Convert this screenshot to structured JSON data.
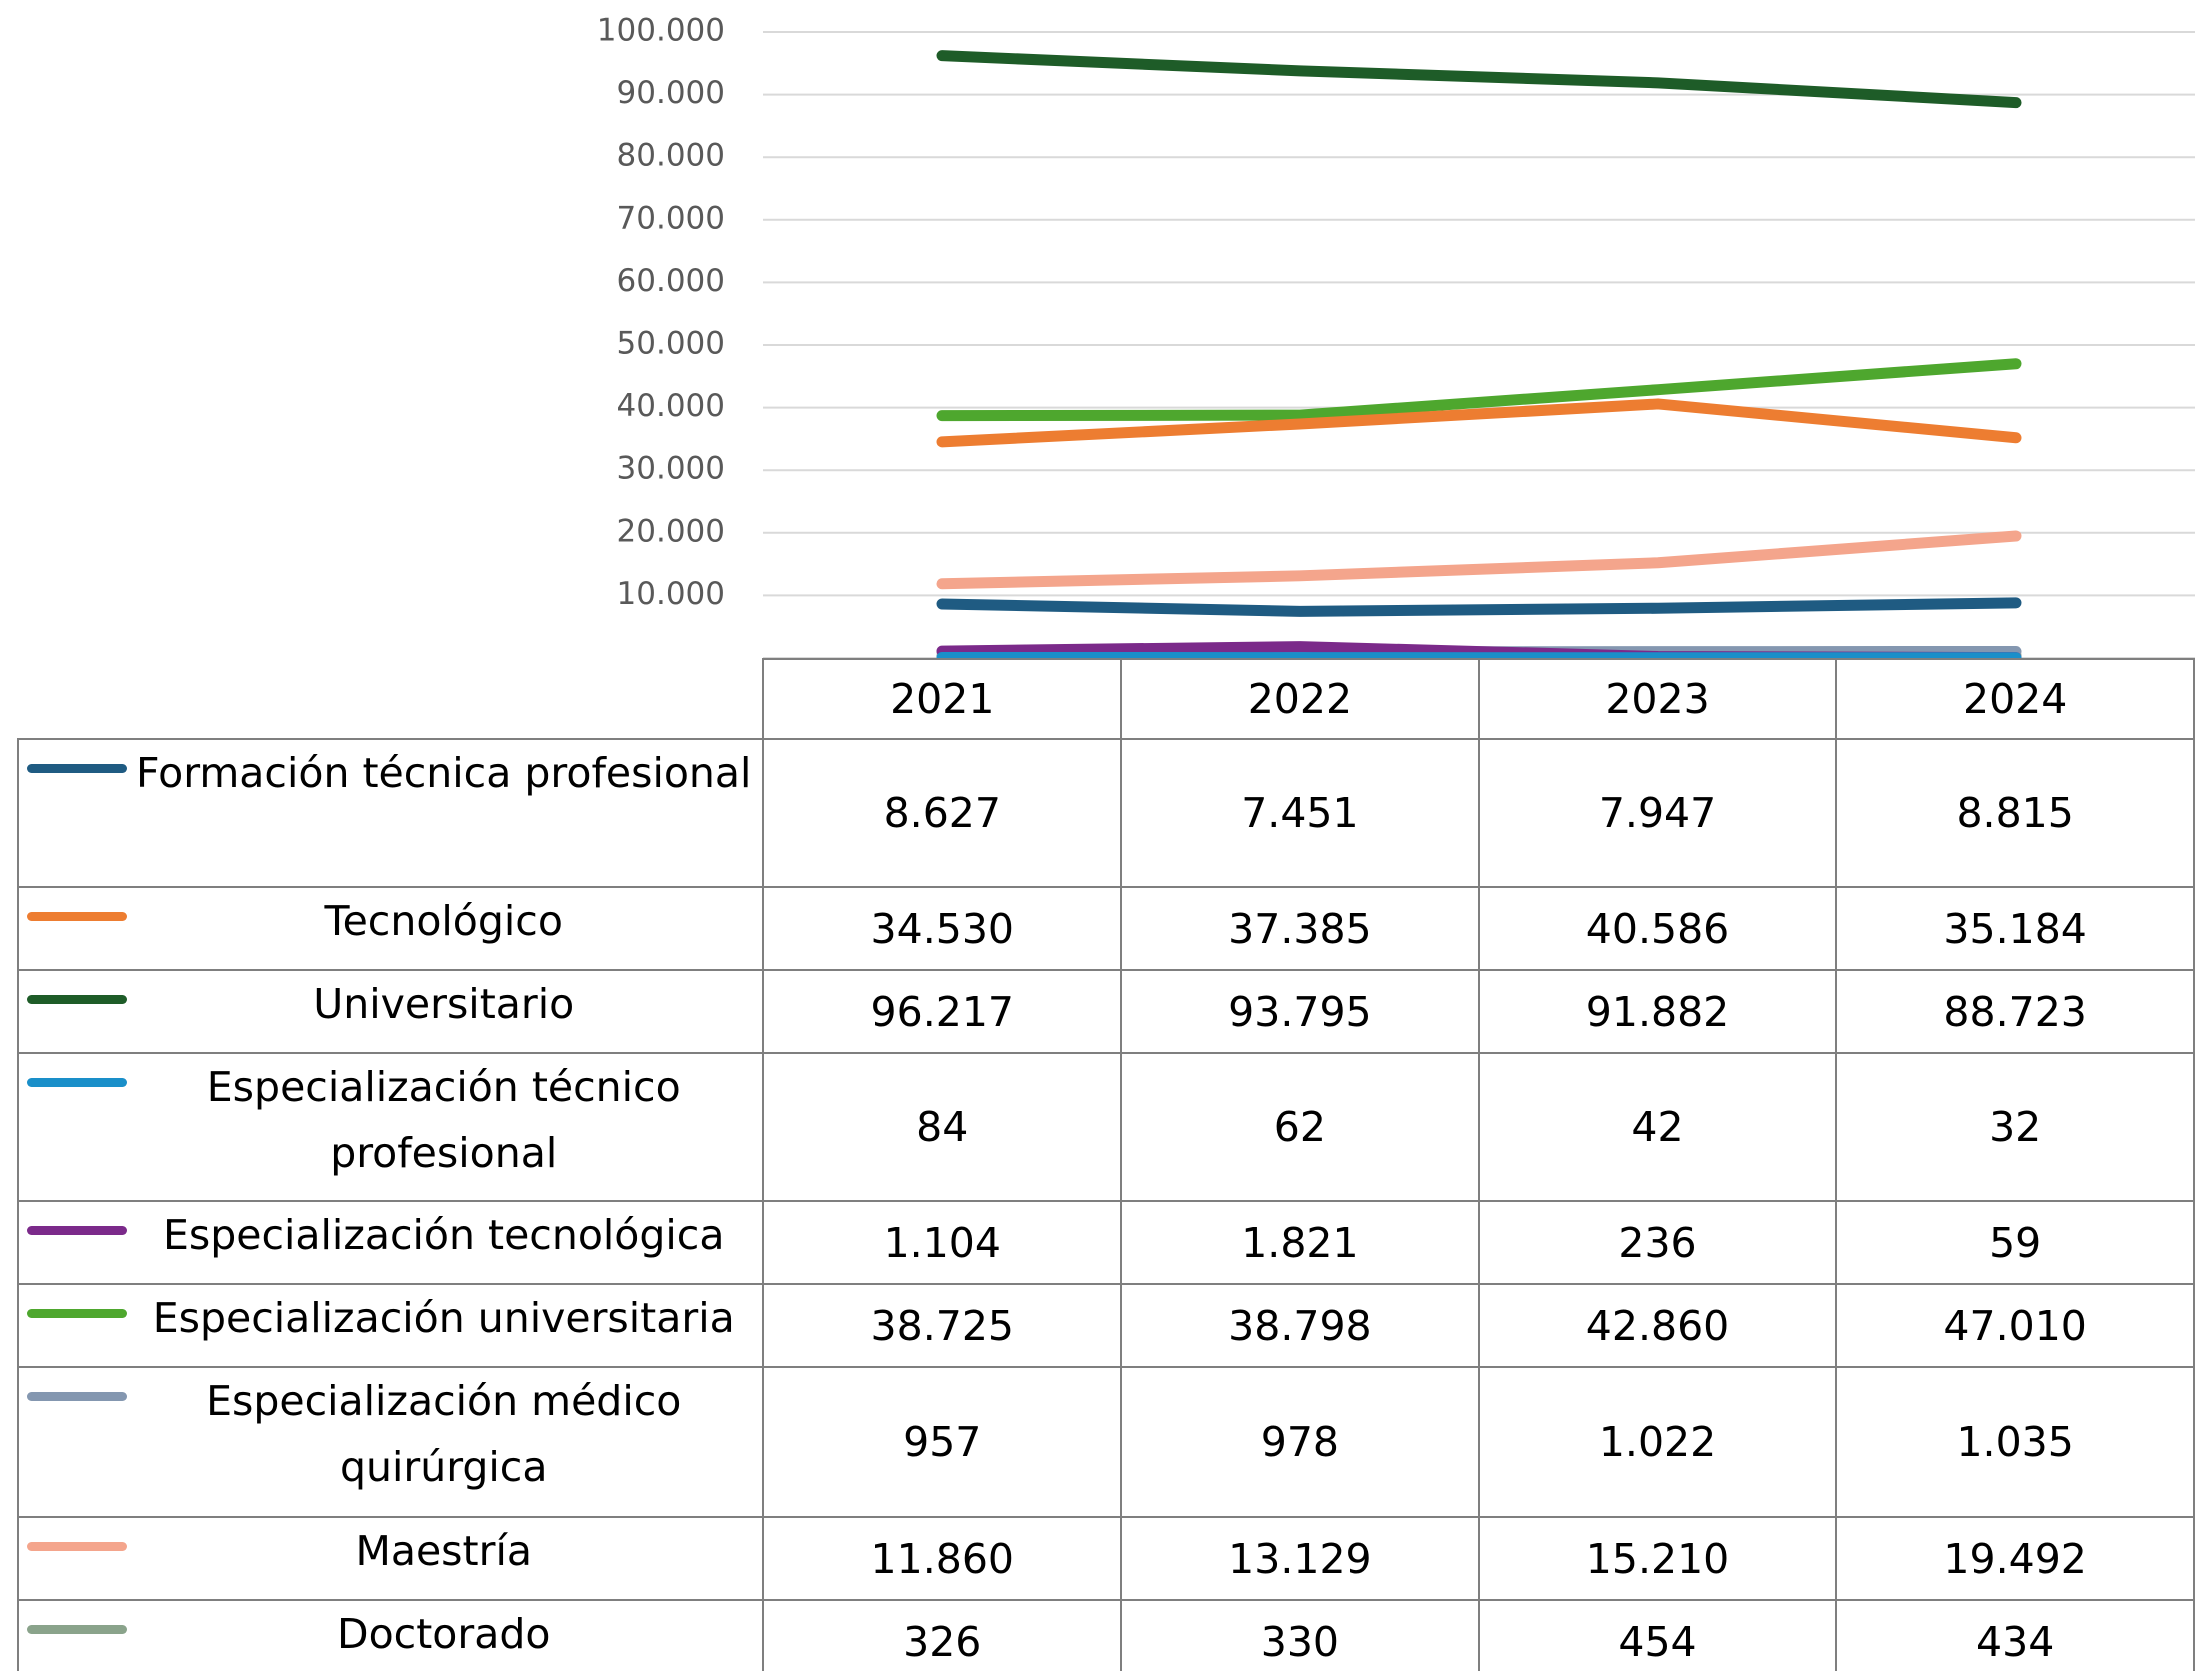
{
  "chart_data": {
    "type": "line",
    "categories": [
      "2021",
      "2022",
      "2023",
      "2024"
    ],
    "ylim": [
      0,
      100000
    ],
    "yticks": [
      {
        "value": 10000,
        "label": "10.000"
      },
      {
        "value": 20000,
        "label": "20.000"
      },
      {
        "value": 30000,
        "label": "30.000"
      },
      {
        "value": 40000,
        "label": "40.000"
      },
      {
        "value": 50000,
        "label": "50.000"
      },
      {
        "value": 60000,
        "label": "60.000"
      },
      {
        "value": 70000,
        "label": "70.000"
      },
      {
        "value": 80000,
        "label": "80.000"
      },
      {
        "value": 90000,
        "label": "90.000"
      },
      {
        "value": 100000,
        "label": "100.000"
      }
    ],
    "grid": true,
    "data_table": true,
    "series": [
      {
        "name": "Formación técnica profesional",
        "color": "#1f5b82",
        "values": [
          8627,
          7451,
          7947,
          8815
        ],
        "value_labels": [
          "8.627",
          "7.451",
          "7.947",
          "8.815"
        ]
      },
      {
        "name": "Tecnológico",
        "color": "#ed7d31",
        "values": [
          34530,
          37385,
          40586,
          35184
        ],
        "value_labels": [
          "34.530",
          "37.385",
          "40.586",
          "35.184"
        ]
      },
      {
        "name": "Universitario",
        "color": "#1e5c28",
        "values": [
          96217,
          93795,
          91882,
          88723
        ],
        "value_labels": [
          "96.217",
          "93.795",
          "91.882",
          "88.723"
        ]
      },
      {
        "name": "Especialización técnico profesional",
        "color": "#1a8fc9",
        "values": [
          84,
          62,
          42,
          32
        ],
        "value_labels": [
          "84",
          "62",
          "42",
          "32"
        ]
      },
      {
        "name": "Especialización tecnológica",
        "color": "#7b2a8a",
        "values": [
          1104,
          1821,
          236,
          59
        ],
        "value_labels": [
          "1.104",
          "1.821",
          "236",
          "59"
        ]
      },
      {
        "name": "Especialización universitaria",
        "color": "#4ea72e",
        "values": [
          38725,
          38798,
          42860,
          47010
        ],
        "value_labels": [
          "38.725",
          "38.798",
          "42.860",
          "47.010"
        ]
      },
      {
        "name": "Especialización médico quirúrgica",
        "color": "#8497b0",
        "values": [
          957,
          978,
          1022,
          1035
        ],
        "value_labels": [
          "957",
          "978",
          "1.022",
          "1.035"
        ]
      },
      {
        "name": "Maestría",
        "color": "#f4a58c",
        "values": [
          11860,
          13129,
          15210,
          19492
        ],
        "value_labels": [
          "11.860",
          "13.129",
          "15.210",
          "19.492"
        ]
      },
      {
        "name": "Doctorado",
        "color": "#8aa38b",
        "values": [
          326,
          330,
          454,
          434
        ],
        "value_labels": [
          "326",
          "330",
          "454",
          "434"
        ]
      }
    ]
  }
}
